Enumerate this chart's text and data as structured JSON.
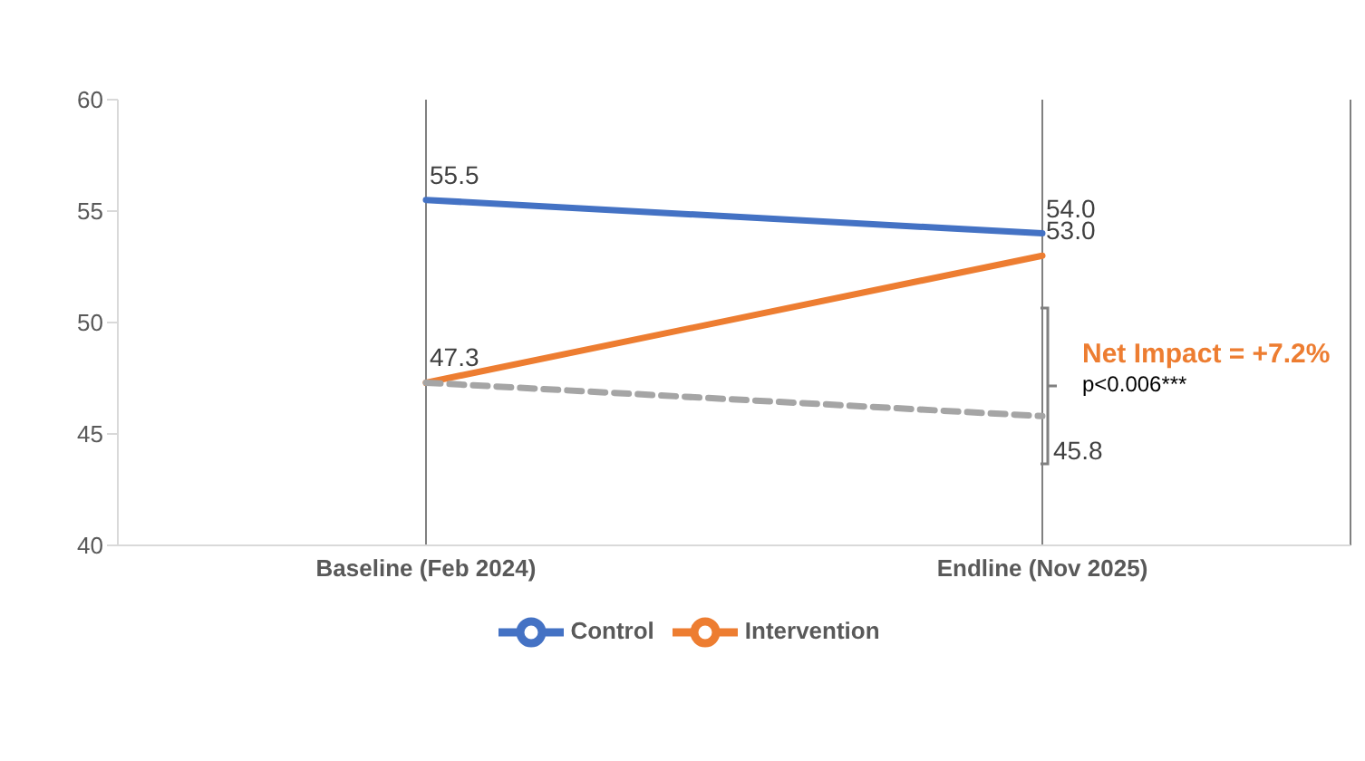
{
  "chart_data": {
    "type": "line",
    "categories": [
      "Baseline (Feb 2024)",
      "Endline (Nov 2025)"
    ],
    "series": [
      {
        "name": "Control",
        "color": "#4472c4",
        "values": [
          55.5,
          54.0
        ],
        "value_labels": [
          "55.5",
          "54.0"
        ]
      },
      {
        "name": "Intervention",
        "color": "#ed7d31",
        "values": [
          47.3,
          53.0
        ],
        "value_labels": [
          "47.3",
          "53.0"
        ]
      },
      {
        "color": "#a5a5a5",
        "values": [
          47.3,
          45.8
        ],
        "value_labels": [
          null,
          "45.8"
        ],
        "line_style": "dashed"
      }
    ],
    "ylim": [
      40,
      60
    ],
    "yticks": [
      40,
      45,
      50,
      55,
      60
    ],
    "grid": "x",
    "legend": "bottom",
    "marker": "none",
    "annotations": [
      "Net Impact = +7.2%",
      "p<0.006***"
    ]
  }
}
